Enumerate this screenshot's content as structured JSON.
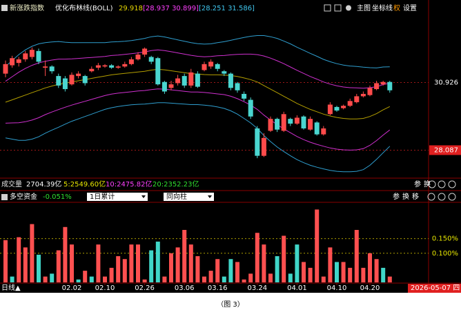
{
  "header": {
    "index_name": "新涨跌指数",
    "indicator": "优化布林线(BOLL)",
    "mid_value": "29.918",
    "inner_band": "[28.937 30.899]",
    "outer_band": "[28.251 31.586]",
    "controls": [
      "主图",
      "坐标线",
      "权",
      "设置"
    ]
  },
  "volume_row": {
    "label": "成交量",
    "total": "2704.39亿",
    "averages": [
      {
        "text": "5:2549.60亿",
        "color": "#e8e800"
      },
      {
        "text": "10:2475.82亿",
        "color": "#ff40ff"
      },
      {
        "text": "20:2352.23亿",
        "color": "#30e030"
      }
    ],
    "controls": [
      "参",
      "换"
    ]
  },
  "indicator_row": {
    "label": "多空资金",
    "value": "-0.051%",
    "dropdowns": [
      "1日累计",
      "同向柱"
    ],
    "controls": [
      "参",
      "换",
      "移"
    ]
  },
  "footer": {
    "period": "日线▲",
    "date": "2026-05-07 四"
  },
  "caption": "（图 3）",
  "chart_data": [
    {
      "type": "candlestick",
      "ylim": [
        26.97,
        33.87
      ],
      "yticks": [
        28.087,
        30.926
      ],
      "tick_styles": [
        "box",
        "plain"
      ],
      "up_color": "#ff4b4b",
      "down_color": "#4ad6d0",
      "open": [
        31.3,
        31.65,
        31.75,
        31.9,
        32.0,
        32.25,
        31.55,
        31.6,
        31.2,
        31.1,
        30.85,
        31.2,
        31.2,
        31.4,
        31.55,
        31.6,
        31.65,
        31.55,
        31.6,
        31.7,
        31.9,
        32.1,
        32.0,
        31.95,
        30.95,
        30.7,
        30.9,
        31.2,
        30.8,
        31.3,
        31.45,
        31.6,
        31.7,
        31.4,
        31.3,
        30.9,
        30.45,
        30.2,
        29.0,
        27.85,
        28.9,
        29.4,
        28.9,
        29.4,
        29.2,
        29.5,
        28.95,
        29.25,
        28.75,
        29.6,
        29.9,
        29.85,
        29.95,
        30.1,
        30.35,
        30.4,
        30.65,
        30.85,
        30.95
      ],
      "high": [
        31.85,
        32.05,
        32.0,
        32.25,
        32.4,
        32.35,
        31.85,
        31.65,
        31.3,
        31.2,
        31.35,
        31.4,
        31.25,
        31.6,
        31.75,
        31.7,
        31.7,
        31.65,
        31.8,
        32.0,
        32.2,
        32.4,
        32.05,
        32.0,
        31.0,
        31.0,
        31.25,
        31.3,
        31.5,
        31.4,
        31.8,
        31.9,
        31.75,
        31.45,
        31.35,
        30.95,
        30.55,
        30.3,
        29.1,
        28.8,
        29.5,
        29.45,
        29.7,
        29.45,
        29.55,
        29.55,
        29.5,
        29.3,
        29.1,
        30.1,
        29.95,
        30.0,
        30.25,
        30.45,
        30.55,
        30.8,
        31.0,
        31.0,
        31.0
      ],
      "low": [
        31.15,
        31.55,
        31.6,
        31.8,
        31.9,
        31.7,
        31.2,
        31.3,
        30.7,
        30.55,
        30.8,
        31.1,
        30.8,
        31.35,
        31.45,
        31.55,
        31.5,
        31.5,
        31.55,
        31.65,
        31.85,
        32.0,
        31.7,
        30.8,
        30.45,
        30.6,
        30.8,
        30.7,
        30.7,
        30.7,
        31.4,
        31.5,
        31.4,
        31.2,
        30.6,
        30.5,
        30.15,
        29.4,
        27.75,
        27.8,
        28.85,
        28.85,
        28.85,
        29.1,
        29.15,
        28.95,
        28.9,
        28.7,
        28.7,
        29.55,
        29.7,
        29.8,
        29.9,
        30.05,
        30.3,
        30.35,
        30.6,
        30.8,
        30.5
      ],
      "close": [
        31.7,
        31.95,
        31.9,
        32.15,
        32.3,
        31.8,
        31.6,
        31.4,
        30.8,
        30.65,
        31.25,
        31.3,
        30.9,
        31.5,
        31.65,
        31.65,
        31.55,
        31.6,
        31.7,
        31.9,
        32.1,
        32.35,
        31.8,
        30.85,
        30.55,
        30.85,
        31.1,
        30.8,
        31.35,
        30.75,
        31.7,
        31.8,
        31.5,
        31.3,
        30.7,
        30.6,
        30.25,
        29.5,
        27.85,
        28.6,
        29.4,
        28.95,
        29.6,
        29.2,
        29.45,
        29.0,
        29.4,
        28.75,
        29.0,
        30.0,
        29.75,
        29.95,
        30.15,
        30.35,
        30.45,
        30.7,
        30.9,
        30.95,
        30.6
      ],
      "series": [
        {
          "color": "#2f9fd0",
          "values": [
            31.6,
            31.85,
            32.1,
            32.3,
            32.45,
            32.55,
            32.6,
            32.63,
            32.65,
            32.62,
            32.6,
            32.6,
            32.6,
            32.6,
            32.6,
            32.6,
            32.63,
            32.64,
            32.66,
            32.69,
            32.73,
            32.78,
            32.85,
            32.88,
            32.84,
            32.78,
            32.72,
            32.66,
            32.6,
            32.56,
            32.54,
            32.55,
            32.6,
            32.64,
            32.7,
            32.76,
            32.82,
            32.87,
            32.9,
            32.9,
            32.85,
            32.78,
            32.67,
            32.55,
            32.41,
            32.28,
            32.15,
            32.03,
            31.9,
            31.8,
            31.72,
            31.66,
            31.62,
            31.6,
            31.57,
            31.55,
            31.54,
            31.58,
            31.586
          ]
        },
        {
          "color": "#d030d0",
          "values": [
            30.98,
            31.17,
            31.36,
            31.52,
            31.65,
            31.75,
            31.82,
            31.87,
            31.91,
            31.91,
            31.92,
            31.94,
            31.96,
            31.98,
            32.0,
            32.02,
            32.06,
            32.08,
            32.11,
            32.14,
            32.17,
            32.21,
            32.27,
            32.3,
            32.27,
            32.22,
            32.17,
            32.12,
            32.07,
            32.03,
            32.01,
            32.02,
            32.05,
            32.06,
            32.09,
            32.11,
            32.12,
            32.12,
            32.1,
            32.04,
            31.95,
            31.84,
            31.72,
            31.58,
            31.44,
            31.31,
            31.18,
            31.07,
            30.95,
            30.86,
            30.79,
            30.74,
            30.71,
            30.7,
            30.69,
            30.71,
            30.75,
            30.84,
            30.899
          ]
        },
        {
          "color": "#b5a000",
          "values": [
            30.1,
            30.2,
            30.3,
            30.4,
            30.5,
            30.6,
            30.7,
            30.78,
            30.85,
            30.9,
            30.95,
            31.0,
            31.05,
            31.1,
            31.15,
            31.2,
            31.25,
            31.28,
            31.31,
            31.34,
            31.37,
            31.4,
            31.45,
            31.48,
            31.46,
            31.42,
            31.38,
            31.34,
            31.3,
            31.28,
            31.26,
            31.25,
            31.25,
            31.24,
            31.22,
            31.18,
            31.12,
            31.05,
            30.95,
            30.8,
            30.65,
            30.5,
            30.35,
            30.2,
            30.05,
            29.92,
            29.8,
            29.7,
            29.6,
            29.52,
            29.46,
            29.42,
            29.4,
            29.4,
            29.42,
            29.5,
            29.62,
            29.78,
            29.918
          ]
        },
        {
          "color": "#d030d0",
          "values": [
            29.22,
            29.23,
            29.24,
            29.28,
            29.35,
            29.45,
            29.58,
            29.69,
            29.79,
            29.89,
            29.98,
            30.06,
            30.14,
            30.22,
            30.3,
            30.38,
            30.44,
            30.48,
            30.51,
            30.54,
            30.57,
            30.59,
            30.63,
            30.66,
            30.65,
            30.62,
            30.59,
            30.56,
            30.53,
            30.53,
            30.51,
            30.48,
            30.45,
            30.42,
            30.35,
            30.25,
            30.12,
            29.98,
            29.8,
            29.56,
            29.35,
            29.16,
            28.98,
            28.82,
            28.66,
            28.53,
            28.42,
            28.33,
            28.25,
            28.18,
            28.13,
            28.1,
            28.09,
            28.1,
            28.15,
            28.29,
            28.49,
            28.72,
            28.937
          ]
        },
        {
          "color": "#2f9fd0",
          "values": [
            28.6,
            28.55,
            28.5,
            28.5,
            28.55,
            28.65,
            28.8,
            28.93,
            29.05,
            29.18,
            29.3,
            29.4,
            29.5,
            29.6,
            29.7,
            29.8,
            29.87,
            29.92,
            29.96,
            29.99,
            30.01,
            30.02,
            30.05,
            30.08,
            30.08,
            30.06,
            30.04,
            30.02,
            30.0,
            30.0,
            29.98,
            29.95,
            29.9,
            29.84,
            29.74,
            29.6,
            29.42,
            29.23,
            29.0,
            28.7,
            28.45,
            28.22,
            28.03,
            27.85,
            27.69,
            27.56,
            27.45,
            27.37,
            27.3,
            27.24,
            27.2,
            27.18,
            27.18,
            27.2,
            27.27,
            27.45,
            27.7,
            27.98,
            28.251
          ]
        }
      ]
    },
    {
      "type": "bar",
      "ylim": [
        0,
        0.27
      ],
      "yticks": [
        {
          "value": 0.1,
          "label": "0.100%"
        },
        {
          "value": 0.15,
          "label": "0.150%"
        }
      ],
      "categories": [
        null,
        null,
        null,
        null,
        null,
        null,
        null,
        null,
        null,
        null,
        "02.02",
        null,
        null,
        null,
        null,
        "02.10",
        null,
        null,
        null,
        null,
        null,
        "02.26",
        null,
        null,
        null,
        null,
        null,
        "03.06",
        null,
        null,
        null,
        null,
        "03.16",
        null,
        null,
        null,
        null,
        null,
        "03.24",
        null,
        null,
        null,
        null,
        null,
        "04.01",
        null,
        null,
        null,
        null,
        null,
        "04.10",
        null,
        null,
        null,
        null,
        "04.20",
        null,
        null,
        null
      ],
      "values": [
        0.145,
        0.02,
        0.155,
        0.12,
        0.2,
        0.095,
        0.02,
        0.03,
        0.11,
        0.19,
        0.13,
        0.01,
        0.04,
        0.02,
        0.13,
        0.02,
        0.05,
        0.09,
        0.08,
        0.13,
        0.13,
        0.01,
        0.11,
        0.14,
        0.02,
        0.1,
        0.12,
        0.18,
        0.13,
        0.09,
        0.02,
        0.04,
        0.08,
        0.02,
        0.08,
        0.07,
        0.01,
        0.03,
        0.17,
        0.13,
        0.03,
        0.09,
        0.16,
        0.03,
        0.13,
        0.07,
        0.05,
        0.25,
        0.02,
        0.12,
        0.07,
        0.07,
        0.05,
        0.18,
        0.05,
        0.1,
        0.08,
        0.05,
        0.02
      ],
      "colors": [
        "#ff5050",
        "#40d6c8",
        "#ff5050",
        "#ff5050",
        "#ff5050",
        "#40d6c8",
        "#ff5050",
        "#40d6c8",
        "#ff5050",
        "#ff5050",
        "#ff5050",
        "#40d6c8",
        "#ff5050",
        "#40d6c8",
        "#ff5050",
        "#ff5050",
        "#ff5050",
        "#ff5050",
        "#ff5050",
        "#ff5050",
        "#ff5050",
        "#ff5050",
        "#40d6c8",
        "#40d6c8",
        "#ff5050",
        "#ff5050",
        "#ff5050",
        "#ff5050",
        "#ff5050",
        "#ff5050",
        "#ff5050",
        "#ff5050",
        "#ff5050",
        "#40d6c8",
        "#40d6c8",
        "#ff5050",
        "#ff5050",
        "#ff5050",
        "#ff5050",
        "#ff5050",
        "#ff5050",
        "#40d6c8",
        "#ff5050",
        "#40d6c8",
        "#40d6c8",
        "#ff5050",
        "#ff5050",
        "#ff5050",
        "#ff5050",
        "#ff5050",
        "#40d6c8",
        "#ff5050",
        "#ff5050",
        "#ff5050",
        "#ff5050",
        "#ff5050",
        "#ff5050",
        "#40d6c8",
        "#ff5050"
      ],
      "grid": true
    }
  ]
}
